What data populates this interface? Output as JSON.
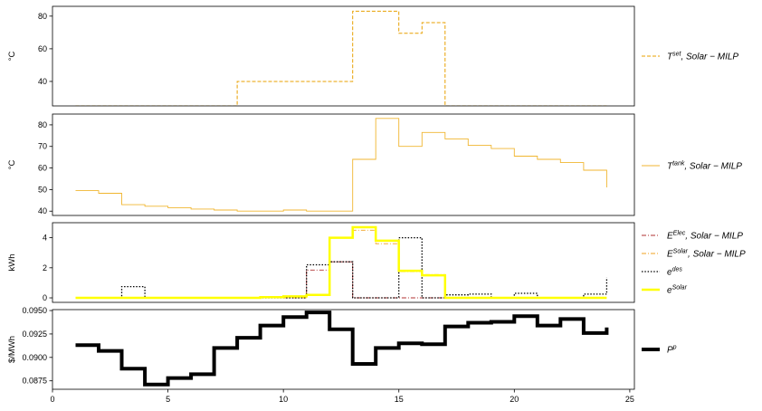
{
  "chart_data": [
    {
      "type": "line",
      "step": "post",
      "title": "",
      "xlabel": "",
      "ylabel": "°C",
      "xlim": [
        0,
        25.2
      ],
      "ylim": [
        25,
        86
      ],
      "xticks": [],
      "yticks": [
        40,
        60,
        80
      ],
      "ytick_labels": [
        "40",
        "60",
        "80"
      ],
      "legend_position": "right",
      "series": [
        {
          "name": "T^{set}, Solar − MILP",
          "label_base": "T",
          "label_sup": "set",
          "label_rest": ", Solar − MILP",
          "color": "#e8a000",
          "dash": "4,2",
          "width": 1,
          "x": [
            1,
            2,
            3,
            4,
            5,
            6,
            7,
            8,
            9,
            10,
            11,
            12,
            13,
            14,
            15,
            16,
            17,
            18,
            19,
            20,
            21,
            22,
            23,
            24
          ],
          "values": [
            25,
            25,
            25,
            25,
            25,
            25,
            25,
            40,
            40,
            40,
            40,
            40,
            83,
            83,
            69.5,
            76,
            25,
            25,
            25,
            25,
            25,
            25,
            25,
            25
          ]
        }
      ]
    },
    {
      "type": "line",
      "step": "post",
      "title": "",
      "xlabel": "",
      "ylabel": "°C",
      "xlim": [
        0,
        25.2
      ],
      "ylim": [
        38,
        85
      ],
      "xticks": [],
      "yticks": [
        40,
        50,
        60,
        70,
        80
      ],
      "ytick_labels": [
        "40",
        "50",
        "60",
        "70",
        "80"
      ],
      "legend_position": "right",
      "series": [
        {
          "name": "T^{tank}, Solar − MILP",
          "label_base": "T",
          "label_sup": "tank",
          "label_rest": ", Solar − MILP",
          "color": "#f0b630",
          "dash": "",
          "width": 0.9,
          "x": [
            1,
            2,
            3,
            4,
            5,
            6,
            7,
            8,
            9,
            10,
            11,
            12,
            13,
            14,
            15,
            16,
            17,
            18,
            19,
            20,
            21,
            22,
            23,
            24
          ],
          "values": [
            49.5,
            48.3,
            43,
            42.3,
            41.6,
            41,
            40.5,
            40,
            40,
            40.5,
            40,
            40,
            64,
            83,
            70,
            76.5,
            73.5,
            70.5,
            69,
            65.5,
            64,
            62.5,
            59,
            51
          ]
        }
      ]
    },
    {
      "type": "line",
      "step": "post",
      "title": "",
      "xlabel": "",
      "ylabel": "kWh",
      "xlim": [
        0,
        25.2
      ],
      "ylim": [
        -0.3,
        5
      ],
      "xticks": [],
      "yticks": [
        0,
        2,
        4
      ],
      "ytick_labels": [
        "0",
        "2",
        "4"
      ],
      "legend_position": "right",
      "series": [
        {
          "name": "E^{Elec}, Solar − MILP",
          "label_base": "E",
          "label_sup": "Elec",
          "label_rest": ", Solar − MILP",
          "color": "#b03030",
          "dash": "5,2,1,2",
          "width": 0.9,
          "x": [
            1,
            2,
            3,
            4,
            5,
            6,
            7,
            8,
            9,
            10,
            11,
            12,
            13,
            14,
            15,
            16,
            17,
            18,
            19,
            20,
            21,
            22,
            23,
            24
          ],
          "values": [
            0,
            0,
            0,
            0,
            0,
            0,
            0,
            0,
            0,
            0,
            1.85,
            2.4,
            0,
            0,
            0,
            0,
            0,
            0,
            0,
            0,
            0,
            0,
            0,
            0
          ]
        },
        {
          "name": "E^{Solar}, Solar − MILP",
          "label_base": "E",
          "label_sup": "Solar",
          "label_rest": ", Solar − MILP",
          "color": "#f0a020",
          "dash": "5,2,1,2",
          "width": 0.9,
          "x": [
            1,
            2,
            3,
            4,
            5,
            6,
            7,
            8,
            9,
            10,
            11,
            12,
            13,
            14,
            15,
            16,
            17,
            18,
            19,
            20,
            21,
            22,
            23,
            24
          ],
          "values": [
            0,
            0,
            0,
            0,
            0,
            0,
            0,
            0,
            0,
            0,
            0.2,
            4,
            4.5,
            3.6,
            1.75,
            1.55,
            0,
            0,
            0,
            0,
            0,
            0,
            0,
            0
          ]
        },
        {
          "name": "e^{des}",
          "label_base": "e",
          "label_sup": "des",
          "label_rest": "",
          "color": "#000000",
          "dash": "1.5,1.8",
          "width": 1.3,
          "x": [
            1,
            2,
            3,
            4,
            5,
            6,
            7,
            8,
            9,
            10,
            11,
            12,
            13,
            14,
            15,
            16,
            17,
            18,
            19,
            20,
            21,
            22,
            23,
            24
          ],
          "values": [
            0,
            0,
            0.75,
            0,
            0,
            0,
            0,
            0,
            0,
            0,
            2.2,
            2.4,
            0,
            0,
            4,
            0,
            0.2,
            0.25,
            0,
            0.3,
            0,
            0,
            0.25,
            1.35
          ]
        },
        {
          "name": "e^{Solar}",
          "label_base": "e",
          "label_sup": "Solar",
          "label_rest": "",
          "color": "#ffff00",
          "dash": "",
          "width": 2.5,
          "x": [
            1,
            2,
            3,
            4,
            5,
            6,
            7,
            8,
            9,
            10,
            11,
            12,
            13,
            14,
            15,
            16,
            17,
            18,
            19,
            20,
            21,
            22,
            23,
            24
          ],
          "values": [
            0,
            0,
            0,
            0,
            0,
            0,
            0,
            0,
            0.05,
            0.1,
            0.2,
            4,
            4.7,
            3.8,
            1.8,
            1.5,
            0,
            0,
            0,
            0,
            0,
            0,
            0,
            0
          ]
        }
      ]
    },
    {
      "type": "line",
      "step": "post",
      "title": "",
      "xlabel": "",
      "ylabel": "$/MWh",
      "xlim": [
        0,
        25.2
      ],
      "ylim": [
        0.0866,
        0.0951
      ],
      "xticks": [
        0,
        5,
        10,
        15,
        20,
        25
      ],
      "xtick_labels": [
        "0",
        "5",
        "10",
        "15",
        "20",
        "25"
      ],
      "yticks": [
        0.0875,
        0.09,
        0.0925,
        0.095
      ],
      "ytick_labels": [
        "0.0875",
        "0.0900",
        "0.0925",
        "0.0950"
      ],
      "legend_position": "right",
      "series": [
        {
          "name": "P^{p}",
          "label_base": "P",
          "label_sup": "p",
          "label_rest": "",
          "color": "#000000",
          "dash": "",
          "width": 4,
          "x": [
            1,
            2,
            3,
            4,
            5,
            6,
            7,
            8,
            9,
            10,
            11,
            12,
            13,
            14,
            15,
            16,
            17,
            18,
            19,
            20,
            21,
            22,
            23,
            24
          ],
          "values": [
            0.0913,
            0.0907,
            0.0888,
            0.0871,
            0.0878,
            0.0882,
            0.091,
            0.0921,
            0.0934,
            0.0943,
            0.0948,
            0.093,
            0.0893,
            0.091,
            0.0915,
            0.0914,
            0.0933,
            0.0937,
            0.0938,
            0.0944,
            0.0934,
            0.0941,
            0.0926,
            0.0932
          ]
        }
      ]
    }
  ]
}
